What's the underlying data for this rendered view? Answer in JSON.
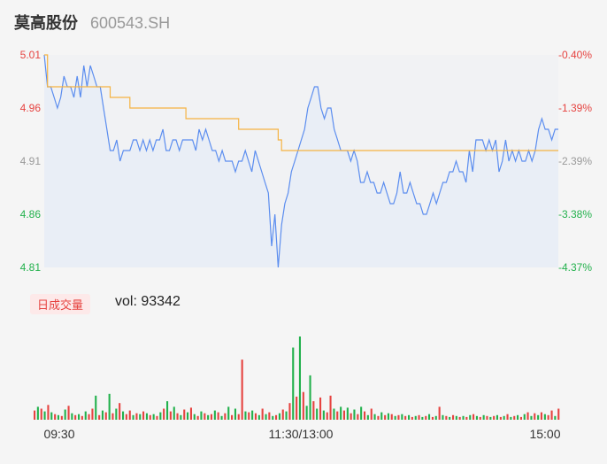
{
  "stock": {
    "name": "莫高股份",
    "code": "600543.SH"
  },
  "volume_panel": {
    "badge": "日成交量",
    "vol_label": "vol: 93342"
  },
  "colors": {
    "price_line": "#5b8def",
    "avg_line": "#f5b342",
    "up": "#e64340",
    "down": "#22b14c",
    "neutral": "#999999"
  },
  "chart_data": [
    {
      "type": "line",
      "y_left_ticks": [
        "5.01",
        "4.96",
        "4.91",
        "4.86",
        "4.81"
      ],
      "y_right_ticks": [
        "-0.40%",
        "-1.39%",
        "-2.39%",
        "-3.38%",
        "-4.37%"
      ],
      "ylim": [
        4.81,
        5.01
      ],
      "x_ticks": [
        "09:30",
        "11:30/13:00",
        "15:00"
      ],
      "series": [
        {
          "values": [
            5.01,
            4.98,
            4.98,
            4.97,
            4.96,
            4.97,
            4.99,
            4.98,
            4.98,
            4.97,
            4.99,
            4.97,
            5.0,
            4.98,
            5.0,
            4.99,
            4.98,
            4.98,
            4.96,
            4.94,
            4.92,
            4.92,
            4.93,
            4.91,
            4.92,
            4.92,
            4.92,
            4.93,
            4.93,
            4.92,
            4.93,
            4.92,
            4.93,
            4.92,
            4.93,
            4.93,
            4.94,
            4.92,
            4.92,
            4.93,
            4.93,
            4.92,
            4.93,
            4.93,
            4.93,
            4.93,
            4.92,
            4.94,
            4.93,
            4.94,
            4.93,
            4.92,
            4.92,
            4.91,
            4.92,
            4.91,
            4.91,
            4.91,
            4.9,
            4.91,
            4.91,
            4.92,
            4.91,
            4.9,
            4.92,
            4.91,
            4.9,
            4.89,
            4.88,
            4.83,
            4.86,
            4.81,
            4.85,
            4.87,
            4.88,
            4.9,
            4.91,
            4.92,
            4.93,
            4.94,
            4.96,
            4.97,
            4.98,
            4.98,
            4.96,
            4.95,
            4.96,
            4.96,
            4.94,
            4.93,
            4.92,
            4.92,
            4.92,
            4.91,
            4.92,
            4.91,
            4.89,
            4.89,
            4.9,
            4.89,
            4.89,
            4.88,
            4.88,
            4.89,
            4.88,
            4.87,
            4.87,
            4.88,
            4.9,
            4.88,
            4.88,
            4.89,
            4.88,
            4.87,
            4.87,
            4.86,
            4.86,
            4.87,
            4.88,
            4.87,
            4.88,
            4.89,
            4.89,
            4.9,
            4.9,
            4.91,
            4.9,
            4.9,
            4.89,
            4.92,
            4.9,
            4.93,
            4.93,
            4.93,
            4.92,
            4.93,
            4.92,
            4.93,
            4.9,
            4.91,
            4.93,
            4.91,
            4.92,
            4.91,
            4.92,
            4.91,
            4.91,
            4.92,
            4.91,
            4.92,
            4.94,
            4.95,
            4.94,
            4.94,
            4.93,
            4.94,
            4.94
          ],
          "color": "#5b8def"
        },
        {
          "values": [
            5.01,
            4.98,
            4.98,
            4.98,
            4.98,
            4.98,
            4.98,
            4.98,
            4.98,
            4.98,
            4.98,
            4.98,
            4.98,
            4.98,
            4.98,
            4.98,
            4.98,
            4.98,
            4.98,
            4.98,
            4.97,
            4.97,
            4.97,
            4.97,
            4.97,
            4.97,
            4.96,
            4.96,
            4.96,
            4.96,
            4.96,
            4.96,
            4.96,
            4.96,
            4.96,
            4.96,
            4.96,
            4.96,
            4.96,
            4.96,
            4.96,
            4.96,
            4.96,
            4.95,
            4.95,
            4.95,
            4.95,
            4.95,
            4.95,
            4.95,
            4.95,
            4.95,
            4.95,
            4.95,
            4.95,
            4.95,
            4.95,
            4.95,
            4.95,
            4.94,
            4.94,
            4.94,
            4.94,
            4.94,
            4.94,
            4.94,
            4.94,
            4.94,
            4.94,
            4.94,
            4.94,
            4.93,
            4.92,
            4.92,
            4.92,
            4.92,
            4.92,
            4.92,
            4.92,
            4.92,
            4.92,
            4.92,
            4.92,
            4.92,
            4.92,
            4.92,
            4.92,
            4.92,
            4.92,
            4.92,
            4.92,
            4.92,
            4.92,
            4.92,
            4.92,
            4.92,
            4.92,
            4.92,
            4.92,
            4.92,
            4.92,
            4.92,
            4.92,
            4.92,
            4.92,
            4.92,
            4.92,
            4.92,
            4.92,
            4.92,
            4.92,
            4.92,
            4.92,
            4.92,
            4.92,
            4.92,
            4.92,
            4.92,
            4.92,
            4.92,
            4.92,
            4.92,
            4.92,
            4.92,
            4.92,
            4.92,
            4.92,
            4.92,
            4.92,
            4.92,
            4.92,
            4.92,
            4.92,
            4.92,
            4.92,
            4.92,
            4.92,
            4.92,
            4.92,
            4.92,
            4.92,
            4.92,
            4.92,
            4.92,
            4.92,
            4.92,
            4.92,
            4.92,
            4.92,
            4.92,
            4.92,
            4.92,
            4.92,
            4.92,
            4.92,
            4.92,
            4.92
          ],
          "color": "#f5b342"
        }
      ]
    },
    {
      "type": "bar",
      "bars": [
        {
          "v": 10,
          "c": "up"
        },
        {
          "v": 14,
          "c": "down"
        },
        {
          "v": 12,
          "c": "up"
        },
        {
          "v": 9,
          "c": "down"
        },
        {
          "v": 16,
          "c": "up"
        },
        {
          "v": 8,
          "c": "down"
        },
        {
          "v": 6,
          "c": "up"
        },
        {
          "v": 5,
          "c": "down"
        },
        {
          "v": 4,
          "c": "up"
        },
        {
          "v": 11,
          "c": "down"
        },
        {
          "v": 15,
          "c": "up"
        },
        {
          "v": 7,
          "c": "down"
        },
        {
          "v": 5,
          "c": "up"
        },
        {
          "v": 6,
          "c": "down"
        },
        {
          "v": 4,
          "c": "up"
        },
        {
          "v": 9,
          "c": "down"
        },
        {
          "v": 6,
          "c": "up"
        },
        {
          "v": 12,
          "c": "up"
        },
        {
          "v": 26,
          "c": "down"
        },
        {
          "v": 5,
          "c": "up"
        },
        {
          "v": 10,
          "c": "down"
        },
        {
          "v": 8,
          "c": "up"
        },
        {
          "v": 28,
          "c": "down"
        },
        {
          "v": 7,
          "c": "up"
        },
        {
          "v": 12,
          "c": "down"
        },
        {
          "v": 18,
          "c": "up"
        },
        {
          "v": 9,
          "c": "down"
        },
        {
          "v": 6,
          "c": "up"
        },
        {
          "v": 10,
          "c": "up"
        },
        {
          "v": 5,
          "c": "down"
        },
        {
          "v": 7,
          "c": "up"
        },
        {
          "v": 6,
          "c": "down"
        },
        {
          "v": 9,
          "c": "up"
        },
        {
          "v": 7,
          "c": "down"
        },
        {
          "v": 5,
          "c": "up"
        },
        {
          "v": 6,
          "c": "down"
        },
        {
          "v": 4,
          "c": "up"
        },
        {
          "v": 8,
          "c": "down"
        },
        {
          "v": 12,
          "c": "up"
        },
        {
          "v": 20,
          "c": "down"
        },
        {
          "v": 9,
          "c": "up"
        },
        {
          "v": 14,
          "c": "down"
        },
        {
          "v": 7,
          "c": "up"
        },
        {
          "v": 5,
          "c": "down"
        },
        {
          "v": 11,
          "c": "up"
        },
        {
          "v": 8,
          "c": "down"
        },
        {
          "v": 13,
          "c": "up"
        },
        {
          "v": 6,
          "c": "down"
        },
        {
          "v": 4,
          "c": "up"
        },
        {
          "v": 9,
          "c": "down"
        },
        {
          "v": 7,
          "c": "up"
        },
        {
          "v": 5,
          "c": "down"
        },
        {
          "v": 6,
          "c": "up"
        },
        {
          "v": 10,
          "c": "down"
        },
        {
          "v": 8,
          "c": "up"
        },
        {
          "v": 4,
          "c": "down"
        },
        {
          "v": 7,
          "c": "up"
        },
        {
          "v": 14,
          "c": "down"
        },
        {
          "v": 5,
          "c": "up"
        },
        {
          "v": 12,
          "c": "down"
        },
        {
          "v": 6,
          "c": "up"
        },
        {
          "v": 65,
          "c": "up"
        },
        {
          "v": 9,
          "c": "down"
        },
        {
          "v": 8,
          "c": "up"
        },
        {
          "v": 10,
          "c": "down"
        },
        {
          "v": 7,
          "c": "up"
        },
        {
          "v": 5,
          "c": "down"
        },
        {
          "v": 12,
          "c": "up"
        },
        {
          "v": 6,
          "c": "down"
        },
        {
          "v": 8,
          "c": "up"
        },
        {
          "v": 4,
          "c": "down"
        },
        {
          "v": 5,
          "c": "up"
        },
        {
          "v": 7,
          "c": "down"
        },
        {
          "v": 11,
          "c": "up"
        },
        {
          "v": 9,
          "c": "down"
        },
        {
          "v": 18,
          "c": "up"
        },
        {
          "v": 78,
          "c": "down"
        },
        {
          "v": 25,
          "c": "up"
        },
        {
          "v": 90,
          "c": "down"
        },
        {
          "v": 30,
          "c": "up"
        },
        {
          "v": 15,
          "c": "down"
        },
        {
          "v": 48,
          "c": "down"
        },
        {
          "v": 20,
          "c": "up"
        },
        {
          "v": 12,
          "c": "down"
        },
        {
          "v": 24,
          "c": "up"
        },
        {
          "v": 10,
          "c": "down"
        },
        {
          "v": 8,
          "c": "up"
        },
        {
          "v": 26,
          "c": "up"
        },
        {
          "v": 12,
          "c": "down"
        },
        {
          "v": 9,
          "c": "up"
        },
        {
          "v": 14,
          "c": "down"
        },
        {
          "v": 10,
          "c": "up"
        },
        {
          "v": 13,
          "c": "down"
        },
        {
          "v": 7,
          "c": "up"
        },
        {
          "v": 11,
          "c": "down"
        },
        {
          "v": 6,
          "c": "up"
        },
        {
          "v": 14,
          "c": "down"
        },
        {
          "v": 9,
          "c": "up"
        },
        {
          "v": 5,
          "c": "down"
        },
        {
          "v": 12,
          "c": "up"
        },
        {
          "v": 6,
          "c": "down"
        },
        {
          "v": 4,
          "c": "up"
        },
        {
          "v": 8,
          "c": "down"
        },
        {
          "v": 5,
          "c": "up"
        },
        {
          "v": 7,
          "c": "down"
        },
        {
          "v": 6,
          "c": "up"
        },
        {
          "v": 4,
          "c": "down"
        },
        {
          "v": 5,
          "c": "up"
        },
        {
          "v": 6,
          "c": "down"
        },
        {
          "v": 4,
          "c": "up"
        },
        {
          "v": 5,
          "c": "down"
        },
        {
          "v": 3,
          "c": "up"
        },
        {
          "v": 4,
          "c": "down"
        },
        {
          "v": 5,
          "c": "up"
        },
        {
          "v": 3,
          "c": "down"
        },
        {
          "v": 4,
          "c": "up"
        },
        {
          "v": 6,
          "c": "down"
        },
        {
          "v": 3,
          "c": "up"
        },
        {
          "v": 4,
          "c": "down"
        },
        {
          "v": 14,
          "c": "up"
        },
        {
          "v": 5,
          "c": "down"
        },
        {
          "v": 4,
          "c": "up"
        },
        {
          "v": 3,
          "c": "down"
        },
        {
          "v": 5,
          "c": "up"
        },
        {
          "v": 4,
          "c": "down"
        },
        {
          "v": 3,
          "c": "up"
        },
        {
          "v": 4,
          "c": "down"
        },
        {
          "v": 3,
          "c": "up"
        },
        {
          "v": 5,
          "c": "down"
        },
        {
          "v": 6,
          "c": "up"
        },
        {
          "v": 4,
          "c": "down"
        },
        {
          "v": 3,
          "c": "up"
        },
        {
          "v": 5,
          "c": "down"
        },
        {
          "v": 4,
          "c": "up"
        },
        {
          "v": 3,
          "c": "down"
        },
        {
          "v": 4,
          "c": "up"
        },
        {
          "v": 5,
          "c": "down"
        },
        {
          "v": 3,
          "c": "up"
        },
        {
          "v": 4,
          "c": "down"
        },
        {
          "v": 6,
          "c": "up"
        },
        {
          "v": 3,
          "c": "down"
        },
        {
          "v": 4,
          "c": "up"
        },
        {
          "v": 5,
          "c": "down"
        },
        {
          "v": 3,
          "c": "up"
        },
        {
          "v": 6,
          "c": "down"
        },
        {
          "v": 8,
          "c": "up"
        },
        {
          "v": 4,
          "c": "down"
        },
        {
          "v": 7,
          "c": "up"
        },
        {
          "v": 5,
          "c": "down"
        },
        {
          "v": 8,
          "c": "up"
        },
        {
          "v": 6,
          "c": "down"
        },
        {
          "v": 5,
          "c": "up"
        },
        {
          "v": 10,
          "c": "up"
        },
        {
          "v": 4,
          "c": "down"
        },
        {
          "v": 12,
          "c": "up"
        }
      ]
    }
  ]
}
